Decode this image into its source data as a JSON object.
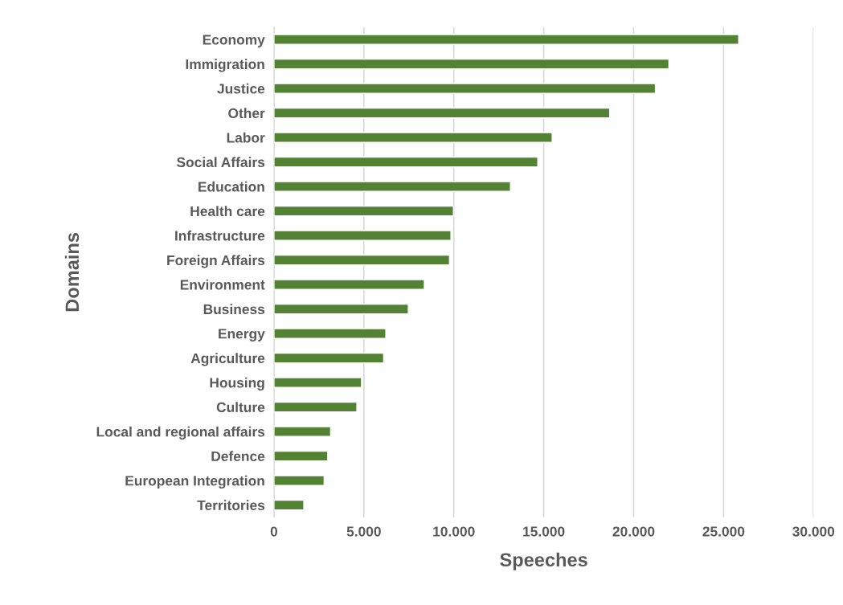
{
  "chart_data": {
    "type": "bar",
    "orientation": "horizontal",
    "xlabel": "Speeches",
    "ylabel": "Domains",
    "categories": [
      "Economy",
      "Immigration",
      "Justice",
      "Other",
      "Labor",
      "Social Affairs",
      "Education",
      "Health care",
      "Infrastructure",
      "Foreign Affairs",
      "Environment",
      "Business",
      "Energy",
      "Agriculture",
      "Housing",
      "Culture",
      "Local and regional affairs",
      "Defence",
      "European Integration",
      "Territories"
    ],
    "values": [
      25840,
      21960,
      21210,
      18670,
      15470,
      14670,
      13150,
      9980,
      9840,
      9760,
      8360,
      7470,
      6220,
      6100,
      4870,
      4610,
      3150,
      2990,
      2790,
      1660
    ],
    "color": "#548235",
    "xlim": [
      0,
      30000
    ],
    "xticks": [
      0,
      {
        "value": 5000,
        "label": "5.000"
      },
      {
        "value": 10000,
        "label": "10.000"
      },
      {
        "value": 15000,
        "label": "15.000"
      },
      {
        "value": 20000,
        "label": "20.000"
      },
      {
        "value": 25000,
        "label": "25.000"
      },
      {
        "value": 30000,
        "label": "30.000"
      }
    ],
    "grid": "x"
  }
}
